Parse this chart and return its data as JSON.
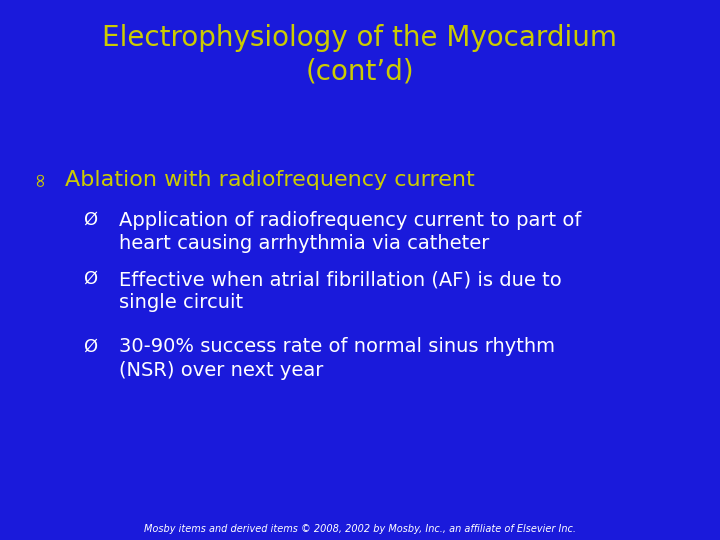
{
  "title_line1": "Electrophysiology of the Myocardium",
  "title_line2": "(cont’d)",
  "title_color": "#CCCC00",
  "bg_color": "#1a1adb",
  "bullet1": "Ablation with radiofrequency current",
  "bullet1_color": "#CCCC00",
  "sub_bullets": [
    "Application of radiofrequency current to part of\nheart causing arrhythmia via catheter",
    "Effective when atrial fibrillation (AF) is due to\nsingle circuit",
    "30-90% success rate of normal sinus rhythm\n(NSR) over next year"
  ],
  "sub_bullet_color": "#FFFFFF",
  "footer": "Mosby items and derived items © 2008, 2002 by Mosby, Inc., an affiliate of Elsevier Inc.",
  "footer_color": "#FFFFFF",
  "title_fontsize": 20,
  "bullet1_fontsize": 16,
  "sub_fontsize": 14,
  "footer_fontsize": 7
}
